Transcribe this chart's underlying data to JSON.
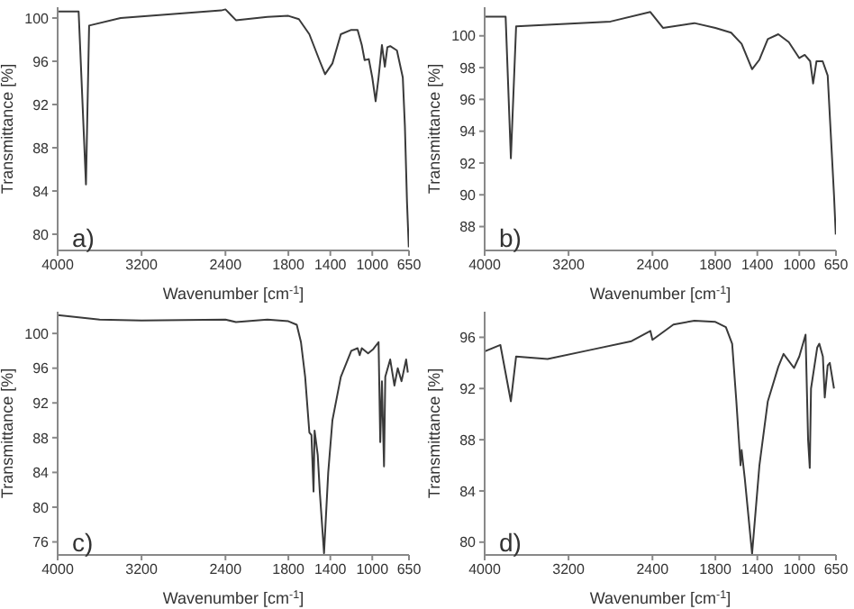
{
  "chart_data": [
    {
      "type": "line",
      "xlabel": "Wavenumber [cm$^{-1}$]",
      "ylabel": "Transmittance [%]",
      "annotations": [
        "a)"
      ],
      "xlim": [
        4000,
        650
      ],
      "xticks": [
        4000,
        3200,
        2400,
        1800,
        1400,
        1000,
        650
      ],
      "ylim": [
        78.5,
        101
      ],
      "yticks": [
        80,
        84,
        88,
        92,
        96,
        100
      ],
      "grid": false,
      "legend": false,
      "marker": "none",
      "line_style": "solid",
      "series": [
        {
          "color": "#3a3a3a",
          "x": [
            4000,
            3800,
            3730,
            3700,
            3400,
            2440,
            2400,
            2300,
            2000,
            1800,
            1700,
            1600,
            1500,
            1450,
            1380,
            1300,
            1200,
            1140,
            1100,
            1073,
            1033,
            1000,
            968,
            940,
            908,
            880,
            856,
            829,
            765,
            709,
            689,
            669,
            652
          ],
          "values": [
            100.6,
            100.6,
            84.6,
            99.3,
            100,
            100.7,
            100.8,
            99.8,
            100.1,
            100.2,
            99.9,
            98.5,
            96,
            94.8,
            95.8,
            98.5,
            98.9,
            98.9,
            97.5,
            96.1,
            96.2,
            94.5,
            92.3,
            94.5,
            97.5,
            95.5,
            97.3,
            97.4,
            97,
            94.5,
            90,
            83,
            78.8
          ]
        }
      ]
    },
    {
      "type": "line",
      "xlabel": "Wavenumber [cm$^{-1}$]",
      "ylabel": "Transmittance [%]",
      "annotations": [
        "b)"
      ],
      "xlim": [
        4000,
        650
      ],
      "xticks": [
        4000,
        3200,
        2400,
        1800,
        1400,
        1000,
        650
      ],
      "ylim": [
        86.5,
        101.8
      ],
      "yticks": [
        88,
        90,
        92,
        94,
        96,
        98,
        100
      ],
      "grid": false,
      "legend": false,
      "marker": "none",
      "line_style": "solid",
      "series": [
        {
          "color": "#3a3a3a",
          "x": [
            4000,
            3800,
            3750,
            3700,
            3400,
            2800,
            2420,
            2300,
            2000,
            1800,
            1650,
            1550,
            1450,
            1380,
            1300,
            1200,
            1100,
            1000,
            948,
            896,
            868,
            836,
            777,
            729,
            701,
            669,
            652
          ],
          "values": [
            101.2,
            101.2,
            92.3,
            100.6,
            100.7,
            100.9,
            101.5,
            100.5,
            100.8,
            100.5,
            100.2,
            99.5,
            97.9,
            98.5,
            99.8,
            100.1,
            99.6,
            98.6,
            98.8,
            98.4,
            97,
            98.4,
            98.4,
            97.5,
            94,
            90,
            87.5
          ]
        }
      ]
    },
    {
      "type": "line",
      "xlabel": "Wavenumber [cm$^{-1}$]",
      "ylabel": "Transmittance [%]",
      "annotations": [
        "c)"
      ],
      "xlim": [
        4000,
        650
      ],
      "xticks": [
        4000,
        3200,
        2400,
        1800,
        1400,
        1000,
        650
      ],
      "ylim": [
        74.5,
        102.5
      ],
      "yticks": [
        76,
        80,
        84,
        88,
        92,
        96,
        100
      ],
      "grid": false,
      "legend": false,
      "marker": "none",
      "line_style": "solid",
      "series": [
        {
          "color": "#3a3a3a",
          "x": [
            4000,
            3600,
            3200,
            2400,
            2300,
            2000,
            1800,
            1720,
            1680,
            1640,
            1600,
            1580,
            1560,
            1550,
            1520,
            1500,
            1460,
            1420,
            1380,
            1300,
            1200,
            1140,
            1120,
            1100,
            1040,
            990,
            940,
            924,
            908,
            888,
            876,
            829,
            789,
            757,
            721,
            677,
            661
          ],
          "values": [
            102.1,
            101.6,
            101.5,
            101.6,
            101.3,
            101.6,
            101.4,
            101,
            99,
            95,
            88.6,
            88.3,
            81.8,
            88.8,
            86,
            81.7,
            74.7,
            84,
            90,
            95,
            98,
            98.3,
            97.5,
            98.3,
            97.7,
            98.2,
            99,
            87.5,
            94.5,
            84.7,
            95,
            97,
            94,
            96,
            94.5,
            97,
            95.5
          ]
        }
      ]
    },
    {
      "type": "line",
      "xlabel": "Wavenumber [cm$^{-1}$]",
      "ylabel": "Transmittance [%]",
      "annotations": [
        "d)"
      ],
      "xlim": [
        4000,
        650
      ],
      "xticks": [
        4000,
        3200,
        2400,
        1800,
        1400,
        1000,
        650
      ],
      "ylim": [
        79,
        98
      ],
      "yticks": [
        80,
        84,
        88,
        92,
        96
      ],
      "grid": false,
      "legend": false,
      "marker": "none",
      "line_style": "solid",
      "series": [
        {
          "color": "#3a3a3a",
          "x": [
            4000,
            3850,
            3750,
            3700,
            3400,
            3000,
            2600,
            2420,
            2400,
            2200,
            2000,
            1800,
            1700,
            1640,
            1600,
            1560,
            1550,
            1520,
            1450,
            1380,
            1300,
            1200,
            1150,
            1050,
            1000,
            940,
            916,
            900,
            888,
            829,
            809,
            775,
            757,
            729,
            709,
            669
          ],
          "values": [
            94.9,
            95.4,
            91,
            94.5,
            94.3,
            95,
            95.7,
            96.5,
            95.8,
            97,
            97.3,
            97.2,
            96.8,
            95.5,
            91,
            86,
            87.2,
            85,
            79.1,
            86,
            91,
            93.7,
            94.7,
            93.6,
            94.5,
            96.2,
            88,
            85.8,
            92,
            95.2,
            95.5,
            94.5,
            91.3,
            93.8,
            94,
            92
          ]
        }
      ]
    }
  ]
}
